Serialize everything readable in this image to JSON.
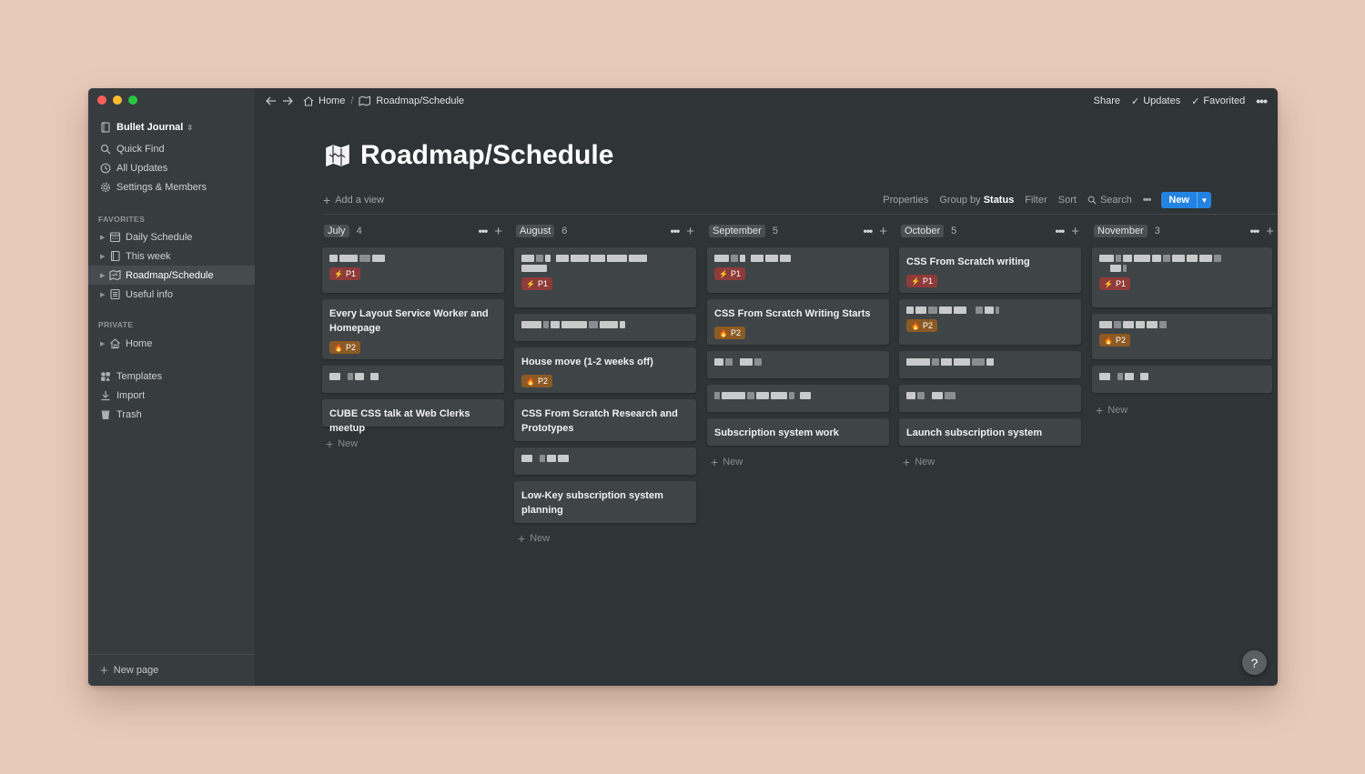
{
  "window": {
    "breadcrumb": {
      "home": "Home",
      "sep": "/",
      "current": "Roadmap/Schedule"
    },
    "top_actions": {
      "share": "Share",
      "updates": "Updates",
      "favorited": "Favorited",
      "more": "•••"
    }
  },
  "sidebar": {
    "workspace": "Bullet Journal",
    "nav": {
      "quick_find": "Quick Find",
      "all_updates": "All Updates",
      "settings": "Settings & Members"
    },
    "favorites_label": "FAVORITES",
    "favorites": {
      "daily": "Daily Schedule",
      "week": "This week",
      "roadmap": "Roadmap/Schedule",
      "useful": "Useful info"
    },
    "private_label": "PRIVATE",
    "private_home": "Home",
    "tools": {
      "templates": "Templates",
      "import": "Import",
      "trash": "Trash"
    },
    "new_page": "New page"
  },
  "page": {
    "title": "Roadmap/Schedule",
    "add_view": "Add a view",
    "toolbar": {
      "properties": "Properties",
      "group_by": "Group by",
      "group_by_value": "Status",
      "filter": "Filter",
      "sort": "Sort",
      "search": "Search",
      "more": "•••",
      "new": "New"
    }
  },
  "board": {
    "new_label": "New",
    "columns": [
      {
        "name": "July",
        "count": "4",
        "cards": [
          {
            "title": "",
            "priority": "P1"
          },
          {
            "title": "Every Layout Service Worker and Homepage",
            "priority": "P2"
          },
          {
            "title": "",
            "priority": ""
          },
          {
            "title": "CUBE CSS talk at Web Clerks meetup",
            "priority": ""
          }
        ]
      },
      {
        "name": "August",
        "count": "6",
        "cards": [
          {
            "title": "",
            "priority": "P1"
          },
          {
            "title": "",
            "priority": ""
          },
          {
            "title": "House move (1-2 weeks off)",
            "priority": "P2"
          },
          {
            "title": "CSS From Scratch Research and Prototypes",
            "priority": ""
          },
          {
            "title": "",
            "priority": ""
          },
          {
            "title": "Low-Key subscription system planning",
            "priority": ""
          }
        ]
      },
      {
        "name": "September",
        "count": "5",
        "cards": [
          {
            "title": "",
            "priority": "P1"
          },
          {
            "title": "CSS From Scratch Writing Starts",
            "priority": "P2"
          },
          {
            "title": "",
            "priority": ""
          },
          {
            "title": "",
            "priority": ""
          },
          {
            "title": "Subscription system work",
            "priority": ""
          }
        ]
      },
      {
        "name": "October",
        "count": "5",
        "cards": [
          {
            "title": "CSS From Scratch writing",
            "priority": "P1"
          },
          {
            "title": "",
            "priority": "P2"
          },
          {
            "title": "",
            "priority": ""
          },
          {
            "title": "",
            "priority": ""
          },
          {
            "title": "Launch subscription system",
            "priority": ""
          }
        ]
      },
      {
        "name": "November",
        "count": "3",
        "cards": [
          {
            "title": "",
            "priority": "P1"
          },
          {
            "title": "",
            "priority": "P2"
          },
          {
            "title": "",
            "priority": ""
          }
        ]
      }
    ]
  },
  "help": "?",
  "colors": {
    "accent": "#2383e2",
    "p1": "#8e3b3a",
    "p2": "#8c5a24",
    "bg": "#2f3437",
    "sidebar": "#373c3f",
    "card": "#3f4447"
  }
}
